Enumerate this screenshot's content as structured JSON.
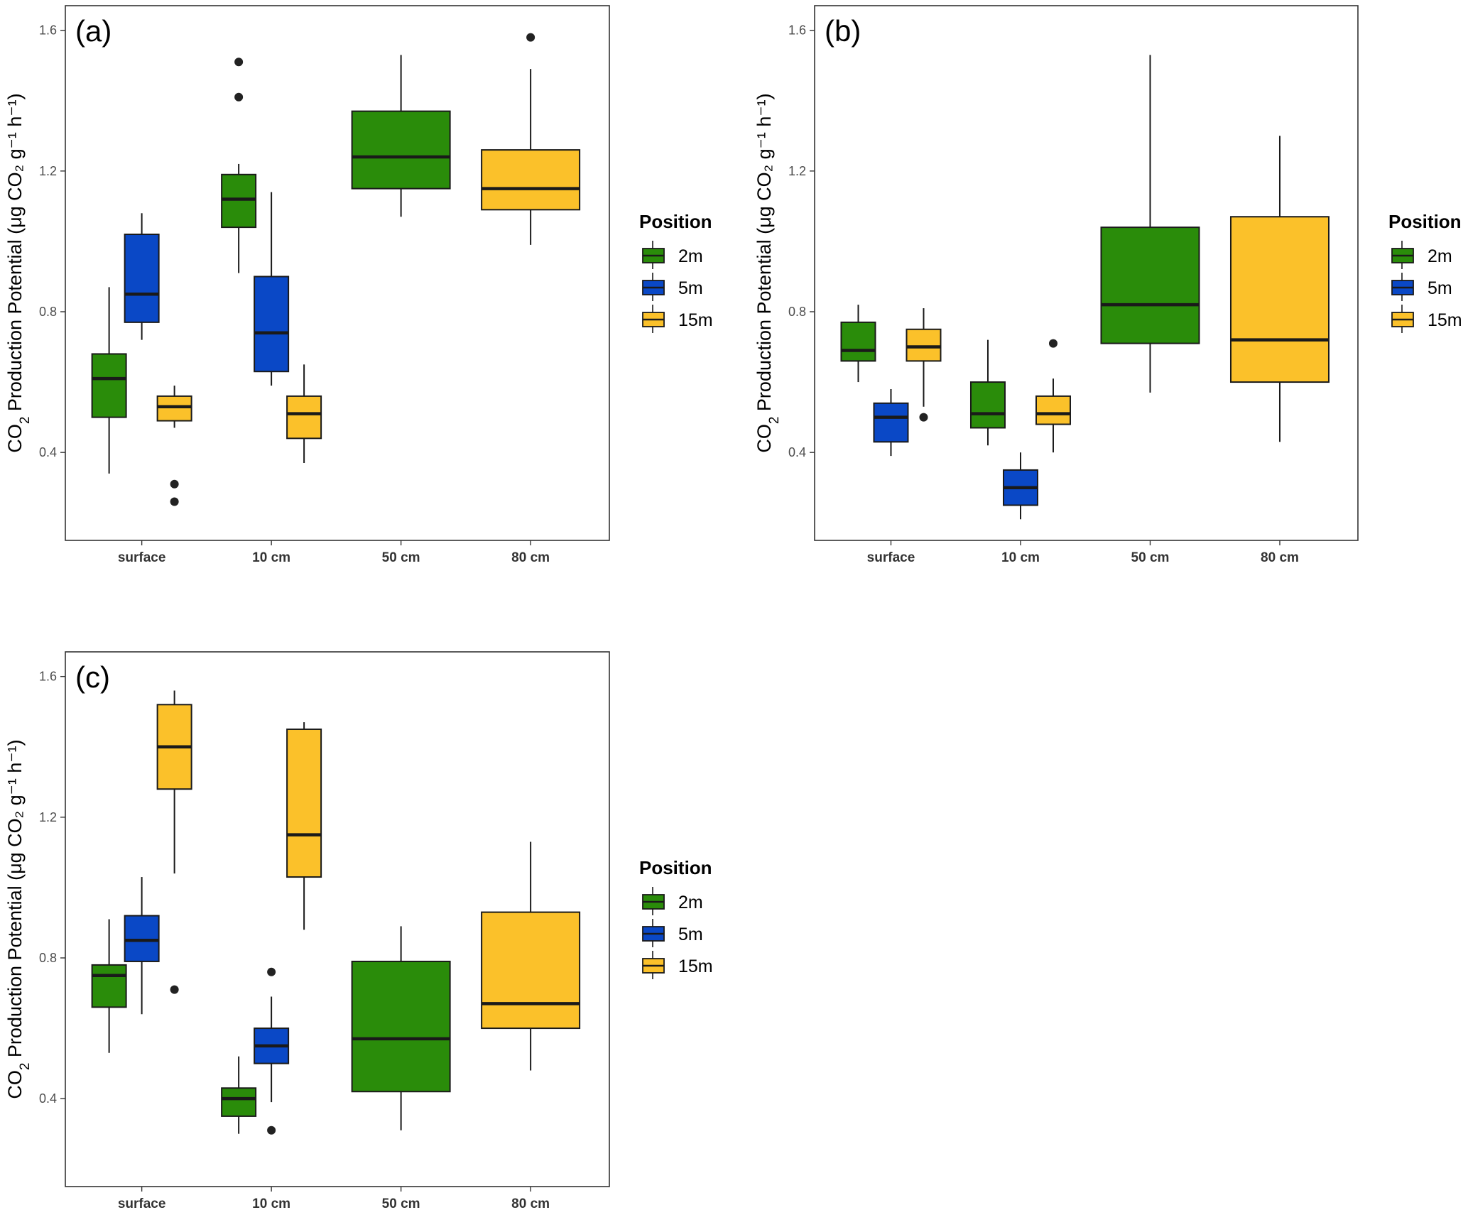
{
  "colors": {
    "2m": "#2a8c0a",
    "5m": "#0a48c6",
    "15m": "#fbc12a",
    "frame": "#333333",
    "line": "#1a1a1a"
  },
  "chart_data": [
    {
      "type": "box",
      "panel_label": "(a)",
      "ylabel_main": "CO",
      "ylabel_sub": "2",
      "ylabel_rest": " Production Potential (",
      "ylabel_units": "μg CO₂ g⁻¹ h⁻¹",
      "ylabel_close": ")",
      "ylim": [
        0.15,
        1.67
      ],
      "yticks": [
        "0.4",
        "0.8",
        "1.2",
        "1.6"
      ],
      "categories": [
        "surface",
        "10 cm",
        "50 cm",
        "80 cm"
      ],
      "legend_title": "Position",
      "legend": [
        "2m",
        "5m",
        "15m"
      ],
      "boxes": [
        {
          "category": "surface",
          "series": "2m",
          "min": 0.34,
          "q1": 0.5,
          "median": 0.61,
          "q3": 0.68,
          "max": 0.87,
          "outliers": []
        },
        {
          "category": "surface",
          "series": "5m",
          "min": 0.72,
          "q1": 0.77,
          "median": 0.85,
          "q3": 1.02,
          "max": 1.08,
          "outliers": []
        },
        {
          "category": "surface",
          "series": "15m",
          "min": 0.47,
          "q1": 0.49,
          "median": 0.53,
          "q3": 0.56,
          "max": 0.59,
          "outliers": [
            0.31,
            0.26
          ]
        },
        {
          "category": "10 cm",
          "series": "2m",
          "min": 0.91,
          "q1": 1.04,
          "median": 1.12,
          "q3": 1.19,
          "max": 1.22,
          "outliers": [
            1.51,
            1.41
          ]
        },
        {
          "category": "10 cm",
          "series": "5m",
          "min": 0.59,
          "q1": 0.63,
          "median": 0.74,
          "q3": 0.9,
          "max": 1.14,
          "outliers": []
        },
        {
          "category": "10 cm",
          "series": "15m",
          "min": 0.37,
          "q1": 0.44,
          "median": 0.51,
          "q3": 0.56,
          "max": 0.65,
          "outliers": []
        },
        {
          "category": "50 cm",
          "series": "2m",
          "min": 1.07,
          "q1": 1.15,
          "median": 1.24,
          "q3": 1.37,
          "max": 1.53,
          "outliers": []
        },
        {
          "category": "80 cm",
          "series": "15m",
          "min": 0.99,
          "q1": 1.09,
          "median": 1.15,
          "q3": 1.26,
          "max": 1.49,
          "outliers": [
            1.58
          ]
        }
      ]
    },
    {
      "type": "box",
      "panel_label": "(b)",
      "ylabel_main": "CO",
      "ylabel_sub": "2",
      "ylabel_rest": " Production Potential (",
      "ylabel_units": "μg CO₂ g⁻¹ h⁻¹",
      "ylabel_close": ")",
      "ylim": [
        0.15,
        1.67
      ],
      "yticks": [
        "0.4",
        "0.8",
        "1.2",
        "1.6"
      ],
      "categories": [
        "surface",
        "10 cm",
        "50 cm",
        "80 cm"
      ],
      "legend_title": "Position",
      "legend": [
        "2m",
        "5m",
        "15m"
      ],
      "boxes": [
        {
          "category": "surface",
          "series": "2m",
          "min": 0.6,
          "q1": 0.66,
          "median": 0.69,
          "q3": 0.77,
          "max": 0.82,
          "outliers": []
        },
        {
          "category": "surface",
          "series": "5m",
          "min": 0.39,
          "q1": 0.43,
          "median": 0.5,
          "q3": 0.54,
          "max": 0.58,
          "outliers": []
        },
        {
          "category": "surface",
          "series": "15m",
          "min": 0.53,
          "q1": 0.66,
          "median": 0.7,
          "q3": 0.75,
          "max": 0.81,
          "outliers": [
            0.5
          ]
        },
        {
          "category": "10 cm",
          "series": "2m",
          "min": 0.42,
          "q1": 0.47,
          "median": 0.51,
          "q3": 0.6,
          "max": 0.72,
          "outliers": []
        },
        {
          "category": "10 cm",
          "series": "5m",
          "min": 0.21,
          "q1": 0.25,
          "median": 0.3,
          "q3": 0.35,
          "max": 0.4,
          "outliers": []
        },
        {
          "category": "10 cm",
          "series": "15m",
          "min": 0.4,
          "q1": 0.48,
          "median": 0.51,
          "q3": 0.56,
          "max": 0.61,
          "outliers": [
            0.71
          ]
        },
        {
          "category": "50 cm",
          "series": "2m",
          "min": 0.57,
          "q1": 0.71,
          "median": 0.82,
          "q3": 1.04,
          "max": 1.53,
          "outliers": []
        },
        {
          "category": "80 cm",
          "series": "15m",
          "min": 0.43,
          "q1": 0.6,
          "median": 0.72,
          "q3": 1.07,
          "max": 1.3,
          "outliers": []
        }
      ]
    },
    {
      "type": "box",
      "panel_label": "(c)",
      "ylabel_main": "CO",
      "ylabel_sub": "2",
      "ylabel_rest": " Production Potential (",
      "ylabel_units": "μg CO₂ g⁻¹ h⁻¹",
      "ylabel_close": ")",
      "ylim": [
        0.15,
        1.67
      ],
      "yticks": [
        "0.4",
        "0.8",
        "1.2",
        "1.6"
      ],
      "categories": [
        "surface",
        "10 cm",
        "50 cm",
        "80 cm"
      ],
      "legend_title": "Position",
      "legend": [
        "2m",
        "5m",
        "15m"
      ],
      "boxes": [
        {
          "category": "surface",
          "series": "2m",
          "min": 0.53,
          "q1": 0.66,
          "median": 0.75,
          "q3": 0.78,
          "max": 0.91,
          "outliers": []
        },
        {
          "category": "surface",
          "series": "5m",
          "min": 0.64,
          "q1": 0.79,
          "median": 0.85,
          "q3": 0.92,
          "max": 1.03,
          "outliers": []
        },
        {
          "category": "surface",
          "series": "15m",
          "min": 1.04,
          "q1": 1.28,
          "median": 1.4,
          "q3": 1.52,
          "max": 1.56,
          "outliers": [
            0.71
          ]
        },
        {
          "category": "10 cm",
          "series": "2m",
          "min": 0.3,
          "q1": 0.35,
          "median": 0.4,
          "q3": 0.43,
          "max": 0.52,
          "outliers": []
        },
        {
          "category": "10 cm",
          "series": "5m",
          "min": 0.39,
          "q1": 0.5,
          "median": 0.55,
          "q3": 0.6,
          "max": 0.69,
          "outliers": [
            0.76,
            0.31
          ]
        },
        {
          "category": "10 cm",
          "series": "15m",
          "min": 0.88,
          "q1": 1.03,
          "median": 1.15,
          "q3": 1.45,
          "max": 1.47,
          "outliers": []
        },
        {
          "category": "50 cm",
          "series": "2m",
          "min": 0.31,
          "q1": 0.42,
          "median": 0.57,
          "q3": 0.79,
          "max": 0.89,
          "outliers": []
        },
        {
          "category": "80 cm",
          "series": "15m",
          "min": 0.48,
          "q1": 0.6,
          "median": 0.67,
          "q3": 0.93,
          "max": 1.13,
          "outliers": []
        }
      ]
    }
  ]
}
